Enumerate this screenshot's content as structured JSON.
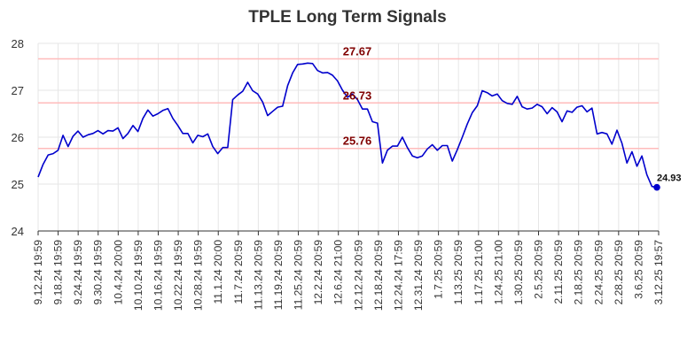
{
  "chart_data": {
    "type": "line",
    "title": "TPLE Long Term Signals",
    "xlabel": "",
    "ylabel": "",
    "ylim": [
      24,
      28
    ],
    "yticks": [
      24,
      25,
      26,
      27,
      28
    ],
    "grid": true,
    "x_tick_labels": [
      "9.12.24 19:59",
      "9.18.24 19:59",
      "9.24.24 19:59",
      "9.30.24 19:59",
      "10.4.24 20:00",
      "10.10.24 19:59",
      "10.16.24 19:59",
      "10.22.24 19:59",
      "10.28.24 19:59",
      "11.1.24 20:00",
      "11.7.24 20:59",
      "11.13.24 20:59",
      "11.19.24 20:59",
      "11.25.24 20:59",
      "12.2.24 20:59",
      "12.6.24 21:00",
      "12.12.24 20:59",
      "12.18.24 20:59",
      "12.24.24 17:59",
      "12.31.24 20:59",
      "1.7.25 20:59",
      "1.13.25 20:59",
      "1.17.25 21:00",
      "1.24.25 21:00",
      "1.30.25 20:59",
      "2.5.25 20:59",
      "2.11.25 20:59",
      "2.18.25 20:59",
      "2.24.25 20:59",
      "2.28.25 20:59",
      "3.6.25 20:59",
      "3.12.25 19:57"
    ],
    "levels": [
      {
        "value": 27.67,
        "label": "27.67"
      },
      {
        "value": 26.73,
        "label": "26.73"
      },
      {
        "value": 25.76,
        "label": "25.76"
      }
    ],
    "series": [
      {
        "values": [
          25.15,
          25.42,
          25.62,
          25.65,
          25.72,
          26.04,
          25.8,
          26.02,
          26.13,
          26.0,
          26.05,
          26.08,
          26.14,
          26.07,
          26.14,
          26.13,
          26.2,
          25.97,
          26.08,
          26.25,
          26.12,
          26.4,
          26.58,
          26.45,
          26.5,
          26.57,
          26.61,
          26.4,
          26.25,
          26.08,
          26.08,
          25.88,
          26.04,
          26.01,
          26.07,
          25.8,
          25.65,
          25.78,
          25.78,
          26.8,
          26.9,
          26.98,
          27.17,
          26.99,
          26.92,
          26.75,
          26.46,
          26.55,
          26.64,
          26.66,
          27.1,
          27.37,
          27.55,
          27.56,
          27.58,
          27.57,
          27.42,
          27.37,
          27.38,
          27.32,
          27.2,
          27.0,
          26.85,
          26.92,
          26.8,
          26.6,
          26.6,
          26.33,
          26.3,
          25.45,
          25.72,
          25.81,
          25.81,
          26.0,
          25.78,
          25.6,
          25.56,
          25.6,
          25.75,
          25.84,
          25.72,
          25.82,
          25.82,
          25.49,
          25.73,
          26.0,
          26.28,
          26.52,
          26.67,
          26.99,
          26.95,
          26.88,
          26.92,
          26.78,
          26.72,
          26.7,
          26.87,
          26.65,
          26.6,
          26.62,
          26.7,
          26.65,
          26.5,
          26.63,
          26.54,
          26.33,
          26.56,
          26.53,
          26.64,
          26.67,
          26.54,
          26.62,
          26.07,
          26.1,
          26.07,
          25.85,
          26.15,
          25.87,
          25.45,
          25.69,
          25.38,
          25.6,
          25.2,
          24.95,
          24.93
        ]
      }
    ],
    "last_value": 24.93,
    "last_value_label": "24.93",
    "colors": {
      "line": "#0000cc",
      "level_line": "#ffbbbb",
      "level_label": "#800000",
      "grid": "#e6e6e6",
      "axis": "#333333"
    }
  }
}
